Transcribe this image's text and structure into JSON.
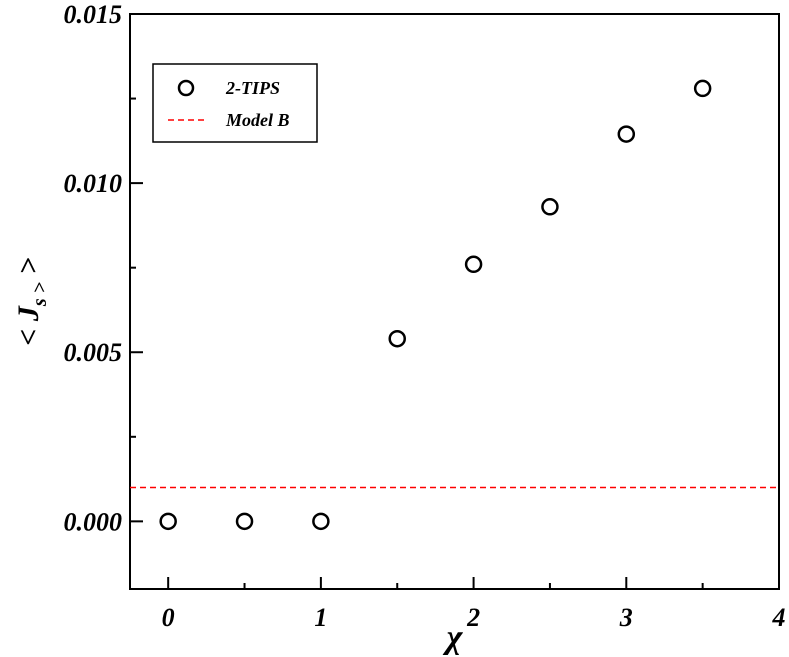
{
  "chart_data": {
    "type": "scatter",
    "title": "",
    "xlabel": "χ",
    "ylabel": "< J_s >",
    "xlim": [
      -0.25,
      4.0
    ],
    "ylim": [
      -0.002,
      0.015
    ],
    "x_ticks": [
      0,
      1,
      2,
      3,
      4
    ],
    "x_tick_labels": [
      "0",
      "1",
      "2",
      "3",
      "4"
    ],
    "y_ticks": [
      0.0,
      0.005,
      0.01,
      0.015
    ],
    "y_tick_labels": [
      "0.000",
      "0.005",
      "0.010",
      "0.015"
    ],
    "grid": false,
    "legend_position": "top-left",
    "series": [
      {
        "name": "2-TIPS",
        "marker": "open-circle",
        "color": "#000000",
        "x": [
          0.0,
          0.5,
          1.0,
          1.5,
          2.0,
          2.5,
          3.0,
          3.5
        ],
        "y": [
          0.0,
          0.0,
          0.0,
          0.0054,
          0.0076,
          0.0093,
          0.01145,
          0.0128
        ]
      },
      {
        "name": "Model B",
        "style": "dashed-line",
        "color": "#ff0000",
        "y": 0.001
      }
    ]
  }
}
